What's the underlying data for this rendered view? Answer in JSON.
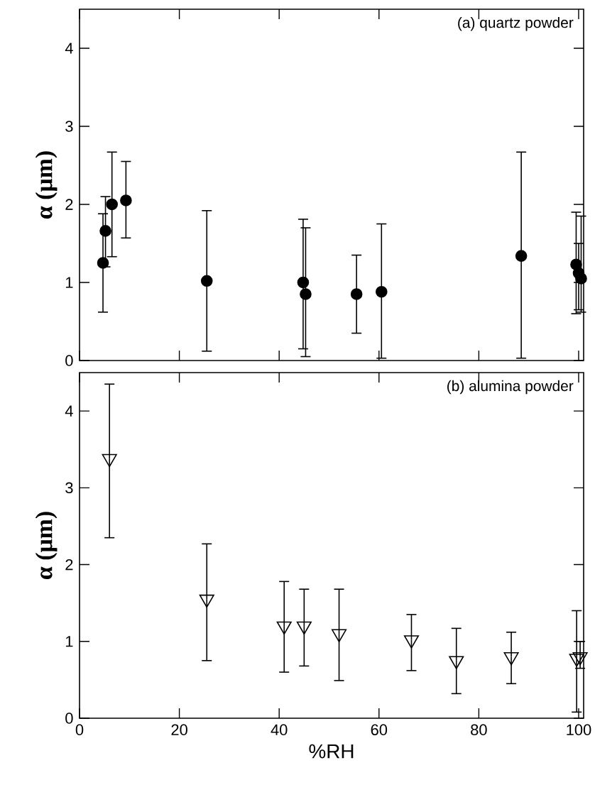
{
  "chart_data": [
    {
      "type": "scatter",
      "annotations": [
        "(a) quartz powder"
      ],
      "ylabel": "α (μm)",
      "x": [
        4.7,
        5.2,
        6.5,
        9.3,
        25.5,
        44.8,
        45.3,
        55.5,
        60.5,
        88.5,
        99.5,
        100,
        100.5
      ],
      "xlim": [
        0,
        101
      ],
      "ylim": [
        0,
        4.5
      ],
      "xticks": [
        0,
        20,
        40,
        60,
        80,
        100
      ],
      "yticks": [
        0,
        1,
        2,
        3,
        4
      ],
      "tick_labels": "y",
      "marker": "circle",
      "grid": false,
      "series": [
        {
          "color": "#000000",
          "values": [
            1.25,
            1.66,
            2.0,
            2.05,
            1.02,
            1.0,
            0.85,
            0.85,
            0.88,
            1.34,
            1.23,
            1.12,
            1.05
          ],
          "errors": [
            [
              0.62,
              1.88
            ],
            [
              1.2,
              2.1
            ],
            [
              1.33,
              2.67
            ],
            [
              1.57,
              2.55
            ],
            [
              0.12,
              1.92
            ],
            [
              0.15,
              1.81
            ],
            [
              0.05,
              1.7
            ],
            [
              0.35,
              1.35
            ],
            [
              0.03,
              1.75
            ],
            [
              0.03,
              2.67
            ],
            [
              0.6,
              1.9
            ],
            [
              0.65,
              1.5
            ],
            [
              0.62,
              1.85
            ]
          ]
        }
      ]
    },
    {
      "type": "scatter",
      "annotations": [
        "(b) alumina powder"
      ],
      "xlabel": "%RH",
      "ylabel": "α (μm)",
      "x": [
        6,
        25.5,
        41,
        45,
        52,
        66.5,
        75.5,
        86.5,
        99.6,
        100.3
      ],
      "xlim": [
        0,
        101
      ],
      "ylim": [
        0,
        4.5
      ],
      "xticks": [
        0,
        20,
        40,
        60,
        80,
        100
      ],
      "yticks": [
        0,
        1,
        2,
        3,
        4
      ],
      "marker": "triangle",
      "grid": false,
      "series": [
        {
          "color": "#000000",
          "values": [
            3.38,
            1.55,
            1.2,
            1.2,
            1.1,
            1.02,
            0.75,
            0.8,
            0.78,
            0.8
          ],
          "errors": [
            [
              2.35,
              4.35
            ],
            [
              0.75,
              2.27
            ],
            [
              0.6,
              1.78
            ],
            [
              0.68,
              1.68
            ],
            [
              0.49,
              1.68
            ],
            [
              0.62,
              1.35
            ],
            [
              0.32,
              1.17
            ],
            [
              0.45,
              1.12
            ],
            [
              0.08,
              1.4
            ],
            [
              0.65,
              1.0
            ]
          ]
        }
      ]
    }
  ]
}
